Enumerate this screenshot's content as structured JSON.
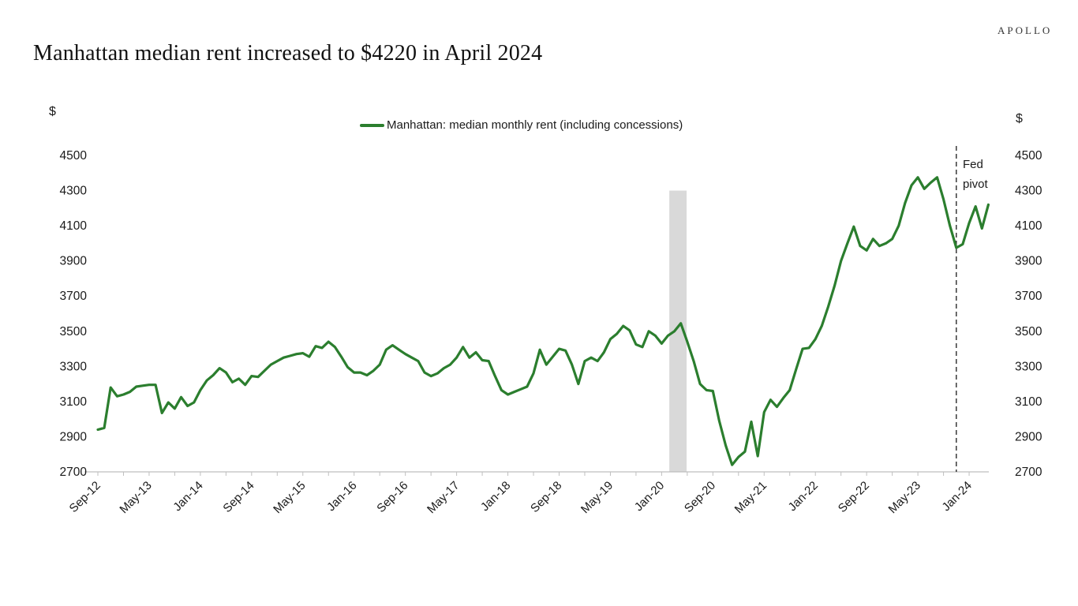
{
  "header": {
    "title": "Manhattan median rent increased to $4220 in April 2024",
    "brand": "APOLLO"
  },
  "legend": {
    "label": "Manhattan: median monthly rent (including concessions)"
  },
  "axes": {
    "unit_label_left": "$",
    "unit_label_right": "$"
  },
  "annotations": {
    "fed_pivot": {
      "line1": "Fed",
      "line2": "pivot"
    }
  },
  "colors": {
    "line_green": "#2b7e2e",
    "recession_band": "#d9d9d9",
    "axis_gray": "#bfbfbf",
    "text_dark": "#1a1a1a"
  },
  "chart_data": {
    "type": "line",
    "title": "Manhattan median rent increased to $4220 in April 2024",
    "ylabel": "$",
    "ylim": [
      2700,
      4500
    ],
    "y_ticks": [
      2700,
      2900,
      3100,
      3300,
      3500,
      3700,
      3900,
      4100,
      4300,
      4500
    ],
    "x_tick_labels": [
      "Sep-12",
      "May-13",
      "Jan-14",
      "Sep-14",
      "May-15",
      "Jan-16",
      "Sep-16",
      "May-17",
      "Jan-18",
      "Sep-18",
      "May-19",
      "Jan-20",
      "Sep-20",
      "May-21",
      "Jan-22",
      "Sep-22",
      "May-23",
      "Jan-24"
    ],
    "x_tick_step_months": 8,
    "frequency": "monthly",
    "start_month": "Sep-2012",
    "end_month": "Apr-2024",
    "grid": false,
    "legend_position": "top-center",
    "series": [
      {
        "name": "Manhattan: median monthly rent (including concessions)",
        "values": [
          2940,
          2950,
          3180,
          3130,
          3140,
          3155,
          3185,
          3190,
          3195,
          3195,
          3035,
          3095,
          3060,
          3125,
          3075,
          3095,
          3165,
          3220,
          3250,
          3290,
          3265,
          3210,
          3230,
          3195,
          3245,
          3240,
          3275,
          3310,
          3330,
          3350,
          3360,
          3370,
          3375,
          3355,
          3415,
          3405,
          3440,
          3410,
          3355,
          3295,
          3265,
          3265,
          3250,
          3275,
          3310,
          3395,
          3420,
          3395,
          3370,
          3350,
          3330,
          3265,
          3245,
          3260,
          3290,
          3310,
          3350,
          3410,
          3350,
          3380,
          3335,
          3330,
          3245,
          3165,
          3140,
          3155,
          3170,
          3185,
          3260,
          3395,
          3310,
          3355,
          3400,
          3390,
          3310,
          3200,
          3330,
          3350,
          3330,
          3380,
          3455,
          3485,
          3530,
          3505,
          3425,
          3410,
          3500,
          3475,
          3430,
          3475,
          3500,
          3545,
          3440,
          3330,
          3200,
          3165,
          3160,
          2990,
          2850,
          2740,
          2785,
          2815,
          2985,
          2790,
          3040,
          3110,
          3070,
          3120,
          3165,
          3285,
          3400,
          3405,
          3455,
          3530,
          3640,
          3760,
          3900,
          4000,
          4095,
          3985,
          3960,
          4025,
          3985,
          4000,
          4025,
          4100,
          4230,
          4330,
          4375,
          4310,
          4345,
          4375,
          4250,
          4100,
          3975,
          3995,
          4115,
          4210,
          4085,
          4220
        ]
      }
    ],
    "recession_band": {
      "from": "Feb-2020",
      "to": "Apr-2020",
      "from_index": 89.2,
      "to_index": 91.9,
      "top_value": 4300
    },
    "fed_pivot_line": {
      "month": "Dec-2023",
      "index": 134.0
    },
    "last_point_label": "$4220 in April 2024"
  }
}
